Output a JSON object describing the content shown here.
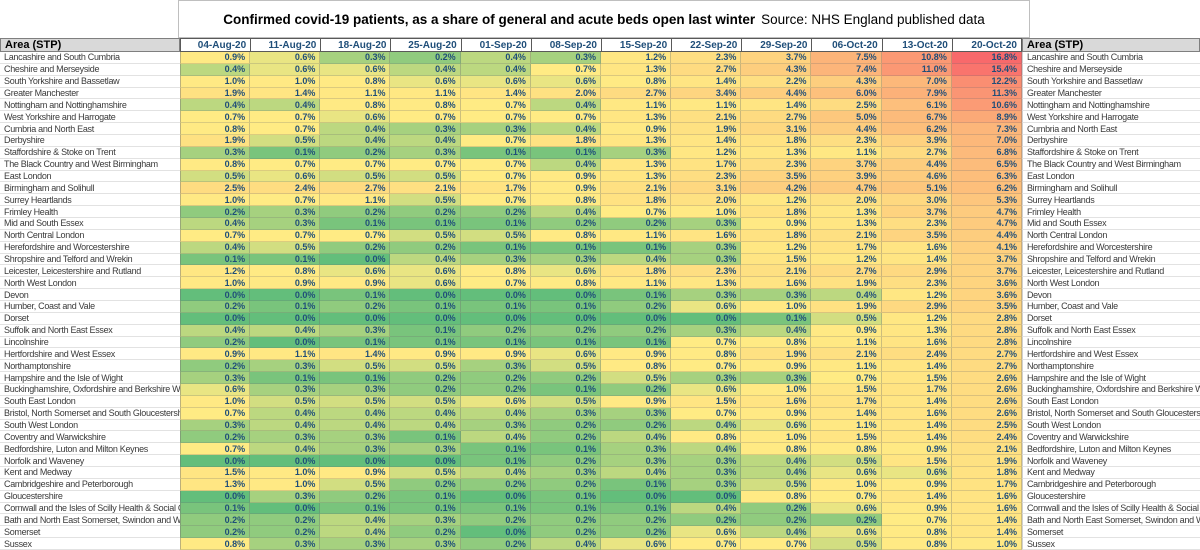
{
  "chart_data": {
    "type": "heatmap",
    "title": "Confirmed covid-19 patients, as a share of general and acute beds open last winter",
    "subtitle": "Source: NHS England published data",
    "unit": "%",
    "row_header": "Area (STP)",
    "legend_position": "none",
    "color_scale": {
      "low": "#63BE7B",
      "mid": "#FFEB84",
      "high": "#F8696B",
      "midpoint": "50th-percentile"
    },
    "columns": [
      "04-Aug-20",
      "11-Aug-20",
      "18-Aug-20",
      "25-Aug-20",
      "01-Sep-20",
      "08-Sep-20",
      "15-Sep-20",
      "22-Sep-20",
      "29-Sep-20",
      "06-Oct-20",
      "13-Oct-20",
      "20-Oct-20"
    ],
    "rows": [
      {
        "area": "Lancashire and South Cumbria",
        "values": [
          0.9,
          0.6,
          0.3,
          0.2,
          0.4,
          0.3,
          1.2,
          2.3,
          3.7,
          7.5,
          10.8,
          16.8
        ]
      },
      {
        "area": "Cheshire and Merseyside",
        "values": [
          0.4,
          0.6,
          0.6,
          0.4,
          0.4,
          0.7,
          1.3,
          2.7,
          4.3,
          7.4,
          11.0,
          15.4
        ]
      },
      {
        "area": "South Yorkshire and Bassetlaw",
        "values": [
          1.0,
          1.0,
          0.8,
          0.6,
          0.6,
          0.6,
          0.8,
          1.4,
          2.2,
          4.3,
          7.0,
          12.2
        ]
      },
      {
        "area": "Greater Manchester",
        "values": [
          1.9,
          1.4,
          1.1,
          1.1,
          1.4,
          2.0,
          2.7,
          3.4,
          4.4,
          6.0,
          7.9,
          11.3
        ]
      },
      {
        "area": "Nottingham and Nottinghamshire",
        "values": [
          0.4,
          0.4,
          0.8,
          0.8,
          0.7,
          0.4,
          1.1,
          1.1,
          1.4,
          2.5,
          6.1,
          10.6
        ]
      },
      {
        "area": "West Yorkshire and Harrogate",
        "values": [
          0.7,
          0.7,
          0.6,
          0.7,
          0.7,
          0.7,
          1.3,
          2.1,
          2.7,
          5.0,
          6.7,
          8.9
        ]
      },
      {
        "area": "Cumbria and North East",
        "values": [
          0.8,
          0.7,
          0.4,
          0.3,
          0.3,
          0.4,
          0.9,
          1.9,
          3.1,
          4.4,
          6.2,
          7.3
        ]
      },
      {
        "area": "Derbyshire",
        "values": [
          1.9,
          0.5,
          0.4,
          0.4,
          0.7,
          1.8,
          1.3,
          1.4,
          1.8,
          2.3,
          3.9,
          7.0
        ]
      },
      {
        "area": "Staffordshire & Stoke on Trent",
        "values": [
          0.3,
          0.1,
          0.2,
          0.3,
          0.1,
          0.1,
          0.3,
          1.2,
          1.3,
          1.1,
          2.7,
          6.8
        ]
      },
      {
        "area": "The Black Country and West Birmingham",
        "values": [
          0.8,
          0.7,
          0.7,
          0.7,
          0.7,
          0.4,
          1.3,
          1.7,
          2.3,
          3.7,
          4.4,
          6.5
        ]
      },
      {
        "area": "East London",
        "values": [
          0.5,
          0.6,
          0.5,
          0.5,
          0.7,
          0.9,
          1.3,
          2.3,
          3.5,
          3.9,
          4.6,
          6.3
        ]
      },
      {
        "area": "Birmingham and Solihull",
        "values": [
          2.5,
          2.4,
          2.7,
          2.1,
          1.7,
          0.9,
          2.1,
          3.1,
          4.2,
          4.7,
          5.1,
          6.2
        ]
      },
      {
        "area": "Surrey Heartlands",
        "values": [
          1.0,
          0.7,
          1.1,
          0.5,
          0.7,
          0.8,
          1.8,
          2.0,
          1.2,
          2.0,
          3.0,
          5.3
        ]
      },
      {
        "area": "Frimley Health",
        "values": [
          0.2,
          0.3,
          0.2,
          0.2,
          0.2,
          0.4,
          0.7,
          1.0,
          1.8,
          1.3,
          3.7,
          4.7
        ]
      },
      {
        "area": "Mid and South Essex",
        "values": [
          0.4,
          0.3,
          0.1,
          0.1,
          0.1,
          0.2,
          0.2,
          0.3,
          0.9,
          1.3,
          2.3,
          4.7
        ]
      },
      {
        "area": "North Central London",
        "values": [
          0.7,
          0.7,
          0.7,
          0.5,
          0.5,
          0.8,
          1.1,
          1.6,
          1.8,
          2.1,
          3.5,
          4.4
        ]
      },
      {
        "area": "Herefordshire and Worcestershire",
        "values": [
          0.4,
          0.5,
          0.2,
          0.2,
          0.1,
          0.1,
          0.1,
          0.3,
          1.2,
          1.7,
          1.6,
          4.1
        ]
      },
      {
        "area": "Shropshire and Telford and Wrekin",
        "values": [
          0.1,
          0.1,
          0.0,
          0.4,
          0.3,
          0.3,
          0.4,
          0.3,
          1.5,
          1.2,
          1.4,
          3.7
        ]
      },
      {
        "area": "Leicester, Leicestershire and Rutland",
        "values": [
          1.2,
          0.8,
          0.6,
          0.6,
          0.8,
          0.6,
          1.8,
          2.3,
          2.1,
          2.7,
          2.9,
          3.7
        ]
      },
      {
        "area": "North West London",
        "values": [
          1.0,
          0.9,
          0.9,
          0.6,
          0.7,
          0.8,
          1.1,
          1.3,
          1.6,
          1.9,
          2.3,
          3.6
        ]
      },
      {
        "area": "Devon",
        "values": [
          0.0,
          0.0,
          0.1,
          0.0,
          0.0,
          0.0,
          0.1,
          0.3,
          0.3,
          0.4,
          1.2,
          3.6
        ]
      },
      {
        "area": "Humber, Coast and Vale",
        "values": [
          0.2,
          0.1,
          0.2,
          0.1,
          0.1,
          0.1,
          0.2,
          0.6,
          1.0,
          1.9,
          2.9,
          3.5
        ]
      },
      {
        "area": "Dorset",
        "values": [
          0.0,
          0.0,
          0.0,
          0.0,
          0.0,
          0.0,
          0.0,
          0.0,
          0.1,
          0.5,
          1.2,
          2.8
        ]
      },
      {
        "area": "Suffolk and North East Essex",
        "values": [
          0.4,
          0.4,
          0.3,
          0.1,
          0.2,
          0.2,
          0.2,
          0.3,
          0.4,
          0.9,
          1.3,
          2.8
        ]
      },
      {
        "area": "Lincolnshire",
        "values": [
          0.2,
          0.0,
          0.1,
          0.1,
          0.1,
          0.1,
          0.1,
          0.7,
          0.8,
          1.1,
          1.6,
          2.8
        ]
      },
      {
        "area": "Hertfordshire and West Essex",
        "values": [
          0.9,
          1.1,
          1.4,
          0.9,
          0.9,
          0.6,
          0.9,
          0.8,
          1.9,
          2.1,
          2.4,
          2.7
        ]
      },
      {
        "area": "Northamptonshire",
        "values": [
          0.2,
          0.3,
          0.5,
          0.5,
          0.3,
          0.5,
          0.8,
          0.7,
          0.9,
          1.1,
          1.4,
          2.7
        ]
      },
      {
        "area": "Hampshire and the Isle of Wight",
        "values": [
          0.3,
          0.1,
          0.1,
          0.2,
          0.2,
          0.2,
          0.5,
          0.3,
          0.3,
          0.7,
          1.5,
          2.6
        ]
      },
      {
        "area": "Buckinghamshire, Oxfordshire and Berkshire West",
        "values": [
          0.6,
          0.3,
          0.3,
          0.2,
          0.2,
          0.1,
          0.2,
          0.6,
          1.0,
          1.5,
          1.7,
          2.6
        ]
      },
      {
        "area": "South East London",
        "values": [
          1.0,
          0.5,
          0.5,
          0.5,
          0.6,
          0.5,
          0.9,
          1.5,
          1.6,
          1.7,
          1.4,
          2.6
        ]
      },
      {
        "area": "Bristol, North Somerset and South Gloucestershire",
        "values": [
          0.7,
          0.4,
          0.4,
          0.4,
          0.4,
          0.3,
          0.3,
          0.7,
          0.9,
          1.4,
          1.6,
          2.6
        ]
      },
      {
        "area": "South West London",
        "values": [
          0.3,
          0.4,
          0.4,
          0.4,
          0.3,
          0.2,
          0.2,
          0.4,
          0.6,
          1.1,
          1.4,
          2.5
        ]
      },
      {
        "area": "Coventry and Warwickshire",
        "values": [
          0.2,
          0.3,
          0.3,
          0.1,
          0.4,
          0.2,
          0.4,
          0.8,
          1.0,
          1.5,
          1.4,
          2.4
        ]
      },
      {
        "area": "Bedfordshire, Luton and Milton Keynes",
        "values": [
          0.7,
          0.4,
          0.3,
          0.3,
          0.1,
          0.1,
          0.3,
          0.4,
          0.8,
          0.8,
          0.9,
          2.1
        ]
      },
      {
        "area": "Norfolk and Waveney",
        "values": [
          0.0,
          0.0,
          0.0,
          0.0,
          0.1,
          0.2,
          0.3,
          0.3,
          0.4,
          0.5,
          1.5,
          1.9
        ]
      },
      {
        "area": "Kent and Medway",
        "values": [
          1.5,
          1.0,
          0.9,
          0.5,
          0.4,
          0.3,
          0.4,
          0.3,
          0.4,
          0.6,
          0.6,
          1.8
        ]
      },
      {
        "area": "Cambridgeshire and Peterborough",
        "values": [
          1.3,
          1.0,
          0.5,
          0.2,
          0.2,
          0.2,
          0.1,
          0.3,
          0.5,
          1.0,
          0.9,
          1.7
        ]
      },
      {
        "area": "Gloucestershire",
        "values": [
          0.0,
          0.3,
          0.2,
          0.1,
          0.0,
          0.1,
          0.0,
          0.0,
          0.8,
          0.7,
          1.4,
          1.6
        ]
      },
      {
        "area": "Cornwall and the Isles of Scilly Health & Social Care",
        "values": [
          0.1,
          0.0,
          0.1,
          0.1,
          0.1,
          0.1,
          0.1,
          0.4,
          0.2,
          0.6,
          0.9,
          1.6
        ]
      },
      {
        "area": "Bath and North East Somerset, Swindon and Wiltshire",
        "values": [
          0.2,
          0.2,
          0.4,
          0.3,
          0.2,
          0.2,
          0.2,
          0.2,
          0.2,
          0.2,
          0.7,
          1.4
        ]
      },
      {
        "area": "Somerset",
        "values": [
          0.2,
          0.2,
          0.4,
          0.2,
          0.0,
          0.2,
          0.2,
          0.6,
          0.4,
          0.6,
          0.8,
          1.4
        ]
      },
      {
        "area": "Sussex",
        "values": [
          0.8,
          0.3,
          0.3,
          0.3,
          0.2,
          0.4,
          0.6,
          0.7,
          0.7,
          0.5,
          0.8,
          1.0
        ]
      }
    ]
  },
  "colors": {
    "value_text": "#1F4E79",
    "date_header_text": "#1F4E79",
    "area_header_bg": "#D9D9D9",
    "scale_low": "#63BE7B",
    "scale_mid": "#FFEB84",
    "scale_high": "#F8696B"
  }
}
